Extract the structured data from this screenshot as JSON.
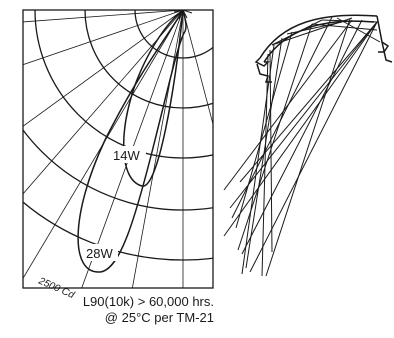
{
  "polar": {
    "candela_label": "2500 Cd",
    "curves": [
      {
        "label": "14W"
      },
      {
        "label": "28W"
      }
    ]
  },
  "caption": {
    "line1": "L90(10k) > 60,000 hrs.",
    "line2": "@ 25°C per TM-21"
  }
}
